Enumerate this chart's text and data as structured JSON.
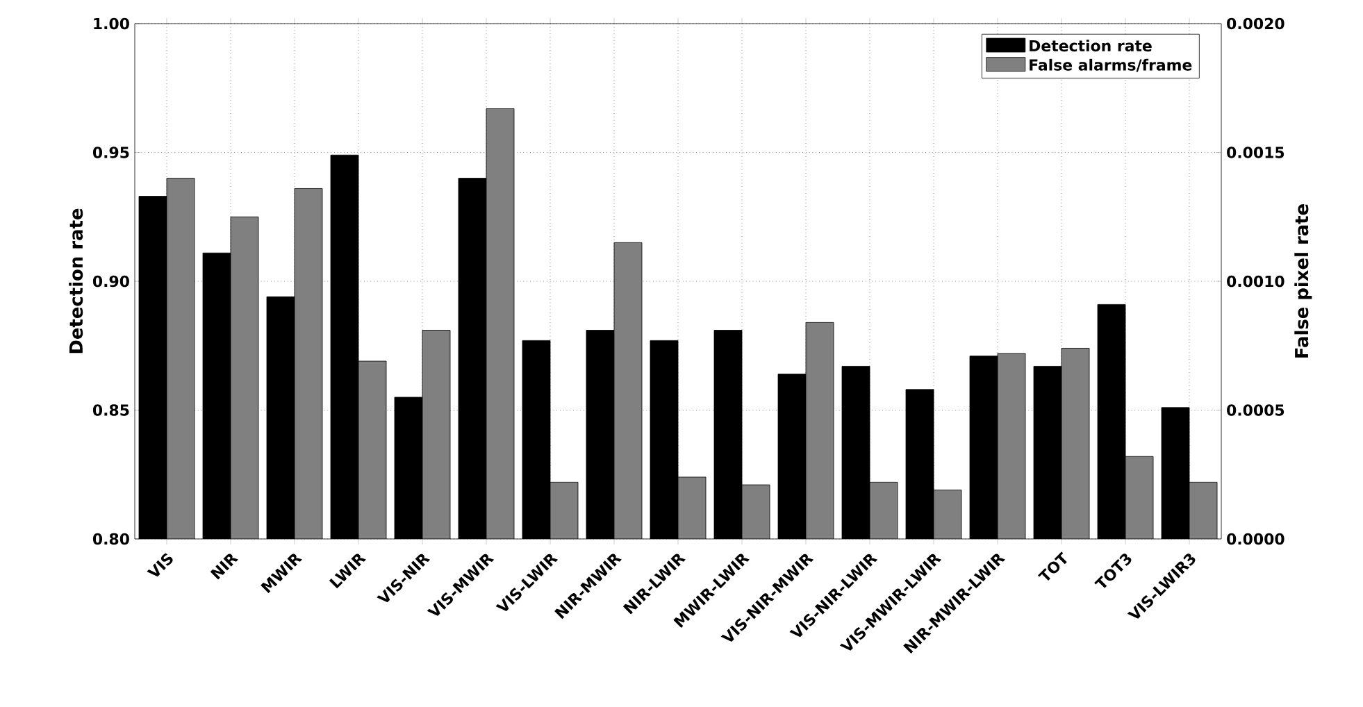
{
  "chart_data": {
    "type": "bar",
    "xlabel": null,
    "ylabel": "Detection rate",
    "y2label": "False pixel rate",
    "categories": [
      "VIS",
      "NIR",
      "MWIR",
      "LWIR",
      "VIS-NIR",
      "VIS-MWIR",
      "VIS-LWIR",
      "NIR-MWIR",
      "NIR-LWIR",
      "MWIR-LWIR",
      "VIS-NIR-MWIR",
      "VIS-NIR-LWIR",
      "VIS-MWIR-LWIR",
      "NIR-MWIR-LWIR",
      "TOT",
      "TOT3",
      "VIS-LWIR3"
    ],
    "series": [
      {
        "name": "Detection rate",
        "color": "#000000",
        "values": [
          0.933,
          0.911,
          0.894,
          0.949,
          0.855,
          0.94,
          0.877,
          0.881,
          0.877,
          0.881,
          0.864,
          0.867,
          0.858,
          0.871,
          0.867,
          0.891,
          0.851
        ]
      },
      {
        "name": "False alarms/frame",
        "color": "#808080",
        "axis": "y2",
        "values": [
          0.0014,
          0.00125,
          0.00136,
          0.00069,
          0.00081,
          0.00167,
          0.00022,
          0.00115,
          0.00024,
          0.00021,
          0.00084,
          0.00022,
          0.00019,
          0.00072,
          0.00074,
          0.00032,
          0.00022
        ]
      }
    ],
    "ylim": [
      0.8,
      1.0
    ],
    "yticks": [
      {
        "value": 0.8,
        "label": "0.80"
      },
      {
        "value": 0.85,
        "label": "0.85"
      },
      {
        "value": 0.9,
        "label": "0.90"
      },
      {
        "value": 0.95,
        "label": "0.95"
      },
      {
        "value": 1.0,
        "label": "1.00"
      }
    ],
    "y2lim": [
      0,
      0.002
    ],
    "y2ticks": [
      {
        "value": 0,
        "label": "0.0000"
      },
      {
        "value": 0.0005,
        "label": "0.0005"
      },
      {
        "value": 0.001,
        "label": "0.0010"
      },
      {
        "value": 0.0015,
        "label": "0.0015"
      },
      {
        "value": 0.002,
        "label": "0.0020"
      }
    ],
    "grid": true,
    "legend": "top right"
  }
}
